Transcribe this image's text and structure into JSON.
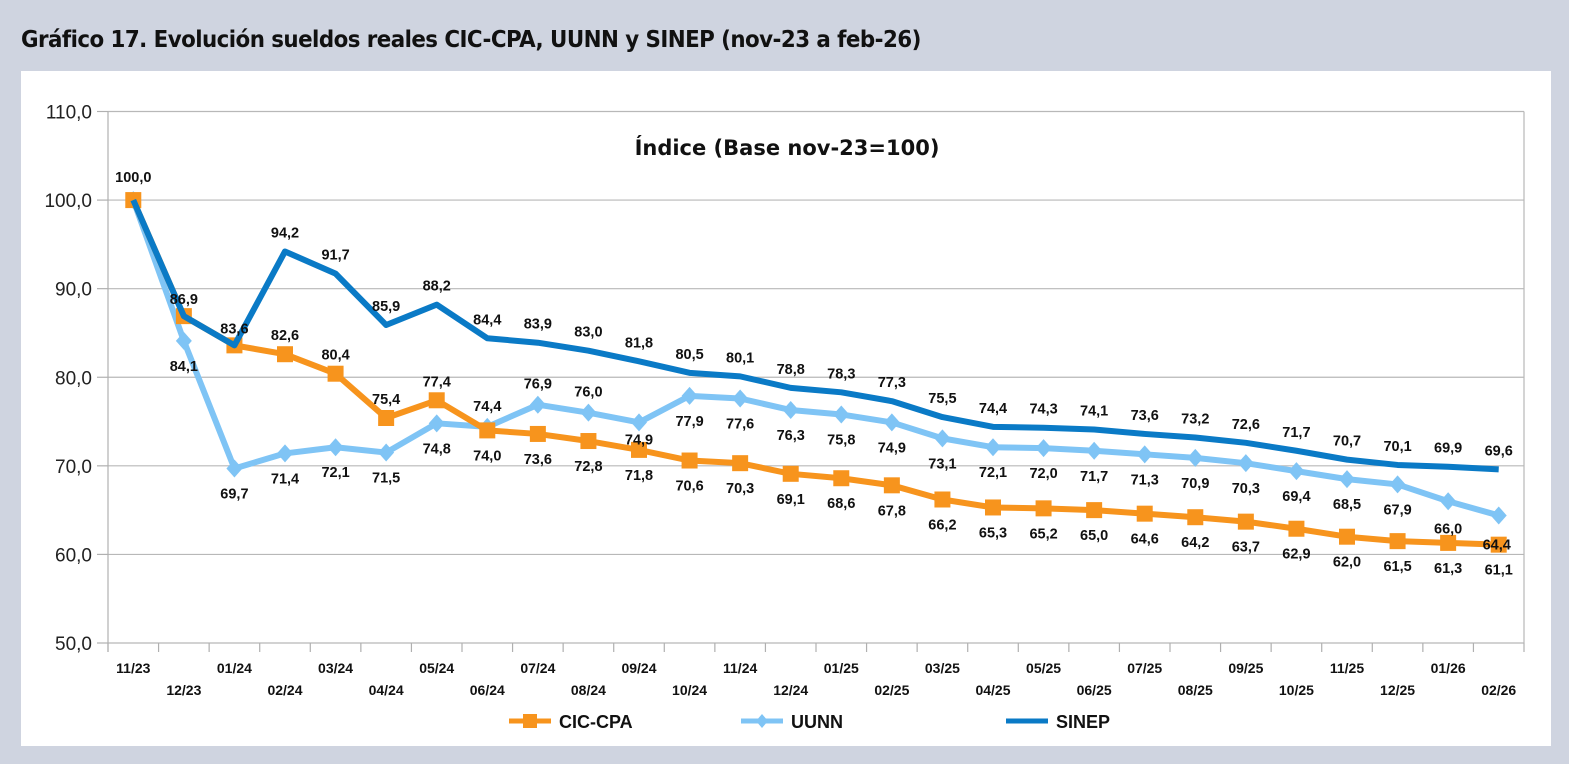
{
  "figure": {
    "title": "Gráfico 17. Evolución sueldos reales CIC-CPA, UUNN y SINEP (nov-23 a feb-26)"
  },
  "chart_data": {
    "type": "line",
    "title": "Índice (Base nov-23=100)",
    "xlabel": "",
    "ylabel": "",
    "ylim": [
      50,
      110
    ],
    "yticks": [
      50,
      60,
      70,
      80,
      90,
      100,
      110
    ],
    "ytick_labels": [
      "50,0",
      "60,0",
      "70,0",
      "80,0",
      "90,0",
      "100,0",
      "110,0"
    ],
    "grid": true,
    "legend_position": "bottom-center",
    "categories": [
      "11/23",
      "12/23",
      "01/24",
      "02/24",
      "03/24",
      "04/24",
      "05/24",
      "06/24",
      "07/24",
      "08/24",
      "09/24",
      "10/24",
      "11/24",
      "12/24",
      "01/25",
      "02/25",
      "03/25",
      "04/25",
      "05/25",
      "06/25",
      "07/25",
      "08/25",
      "09/25",
      "10/25",
      "11/25",
      "12/25",
      "01/26",
      "02/26"
    ],
    "series": [
      {
        "name": "CIC-CPA",
        "color": "#f7941d",
        "marker": "square",
        "values": [
          100.0,
          86.9,
          83.6,
          82.6,
          80.4,
          75.4,
          77.4,
          74.0,
          73.6,
          72.8,
          71.8,
          70.6,
          70.3,
          69.1,
          68.6,
          67.8,
          66.2,
          65.3,
          65.2,
          65.0,
          64.6,
          64.2,
          63.7,
          62.9,
          62.0,
          61.5,
          61.3,
          61.1
        ],
        "labels": [
          "100,0",
          "",
          "",
          "82,6",
          "80,4",
          "75,4",
          "77,4",
          "74,0",
          "73,6",
          "72,8",
          "71,8",
          "70,6",
          "70,3",
          "69,1",
          "68,6",
          "67,8",
          "66,2",
          "65,3",
          "65,2",
          "65,0",
          "64,6",
          "64,2",
          "63,7",
          "62,9",
          "62,0",
          "61,5",
          "61,3",
          "61,1"
        ]
      },
      {
        "name": "UUNN",
        "color": "#7fc4f5",
        "marker": "diamond",
        "values": [
          100.0,
          84.1,
          69.7,
          71.4,
          72.1,
          71.5,
          74.8,
          74.4,
          76.9,
          76.0,
          74.9,
          77.9,
          77.6,
          76.3,
          75.8,
          74.9,
          73.1,
          72.1,
          72.0,
          71.7,
          71.3,
          70.9,
          70.3,
          69.4,
          68.5,
          67.9,
          66.0,
          64.4
        ],
        "labels": [
          "",
          "84,1",
          "69,7",
          "71,4",
          "72,1",
          "71,5",
          "74,8",
          "74,4",
          "76,9",
          "76,0",
          "74,9",
          "77,9",
          "77,6",
          "76,3",
          "75,8",
          "74,9",
          "73,1",
          "72,1",
          "72,0",
          "71,7",
          "71,3",
          "70,9",
          "70,3",
          "69,4",
          "68,5",
          "67,9",
          "66,0",
          "64,4"
        ]
      },
      {
        "name": "SINEP",
        "color": "#0a7ac6",
        "marker": "none",
        "values": [
          100.0,
          86.9,
          83.6,
          94.2,
          91.7,
          85.9,
          88.2,
          84.4,
          83.9,
          83.0,
          81.8,
          80.5,
          80.1,
          78.8,
          78.3,
          77.3,
          75.5,
          74.4,
          74.3,
          74.1,
          73.6,
          73.2,
          72.6,
          71.7,
          70.7,
          70.1,
          69.9,
          69.6
        ],
        "labels": [
          "",
          "86,9",
          "83,6",
          "94,2",
          "91,7",
          "85,9",
          "88,2",
          "84,4",
          "83,9",
          "83,0",
          "81,8",
          "80,5",
          "80,1",
          "78,8",
          "78,3",
          "77,3",
          "75,5",
          "74,4",
          "74,3",
          "74,1",
          "73,6",
          "73,2",
          "72,6",
          "71,7",
          "70,7",
          "70,1",
          "69,9",
          "69,6"
        ]
      }
    ]
  }
}
